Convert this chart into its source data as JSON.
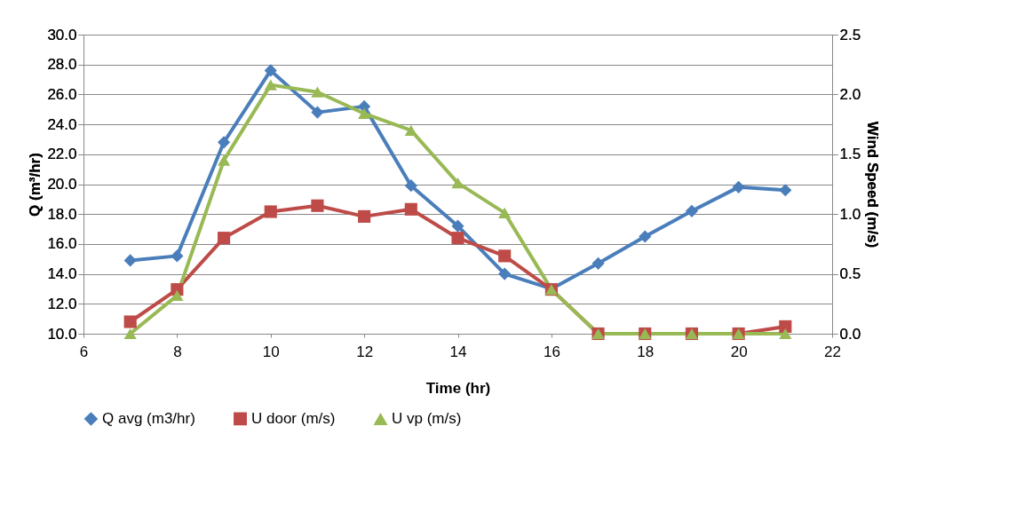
{
  "chart_data": {
    "type": "line",
    "xlabel": "Time (hr)",
    "ylabel": "Q (m³/hr)",
    "y2label": "Wind Speed (m/s)",
    "x": [
      7,
      8,
      9,
      10,
      11,
      12,
      13,
      14,
      15,
      16,
      17,
      18,
      19,
      20,
      21
    ],
    "series": [
      {
        "name": "Q avg (m3/hr)",
        "color": "#4a7ebb",
        "marker": "diamond",
        "values": [
          14.9,
          15.2,
          22.8,
          27.6,
          24.8,
          25.2,
          19.9,
          17.2,
          14.0,
          13.0,
          14.7,
          16.5,
          18.2,
          19.8,
          19.6
        ]
      },
      {
        "name": "U door (m/s)",
        "color": "#be4b48",
        "marker": "square",
        "axis": "y2",
        "values": [
          0.1,
          0.37,
          0.8,
          1.02,
          1.07,
          0.98,
          1.04,
          0.8,
          0.65,
          0.37,
          0,
          0,
          0,
          0,
          0.06
        ]
      },
      {
        "name": "U vp (m/s)",
        "color": "#98b954",
        "marker": "triangle",
        "axis": "y2",
        "values": [
          0,
          0.32,
          1.45,
          2.08,
          2.02,
          1.84,
          1.7,
          1.26,
          1.01,
          0.37,
          0,
          0,
          0,
          0,
          0
        ]
      }
    ],
    "xlim": [
      6,
      22
    ],
    "xticks": [
      6,
      8,
      10,
      12,
      14,
      16,
      18,
      20,
      22
    ],
    "ylim": [
      10,
      30
    ],
    "yticks": [
      {
        "value": 10,
        "label": "10.0"
      },
      {
        "value": 12,
        "label": "12.0"
      },
      {
        "value": 14,
        "label": "14.0"
      },
      {
        "value": 16,
        "label": "16.0"
      },
      {
        "value": 18,
        "label": "18.0"
      },
      {
        "value": 20,
        "label": "20.0"
      },
      {
        "value": 22,
        "label": "22.0"
      },
      {
        "value": 24,
        "label": "24.0"
      },
      {
        "value": 26,
        "label": "26.0"
      },
      {
        "value": 28,
        "label": "28.0"
      },
      {
        "value": 30,
        "label": "30.0"
      }
    ],
    "y2lim": [
      0,
      2.5
    ],
    "y2ticks": [
      {
        "value": 0,
        "label": "0.0"
      },
      {
        "value": 0.5,
        "label": "0.5"
      },
      {
        "value": 1,
        "label": "1.0"
      },
      {
        "value": 1.5,
        "label": "1.5"
      },
      {
        "value": 2,
        "label": "2.0"
      },
      {
        "value": 2.5,
        "label": "2.5"
      }
    ],
    "grid": "y",
    "legend": "bottom",
    "line_style": "solid"
  }
}
